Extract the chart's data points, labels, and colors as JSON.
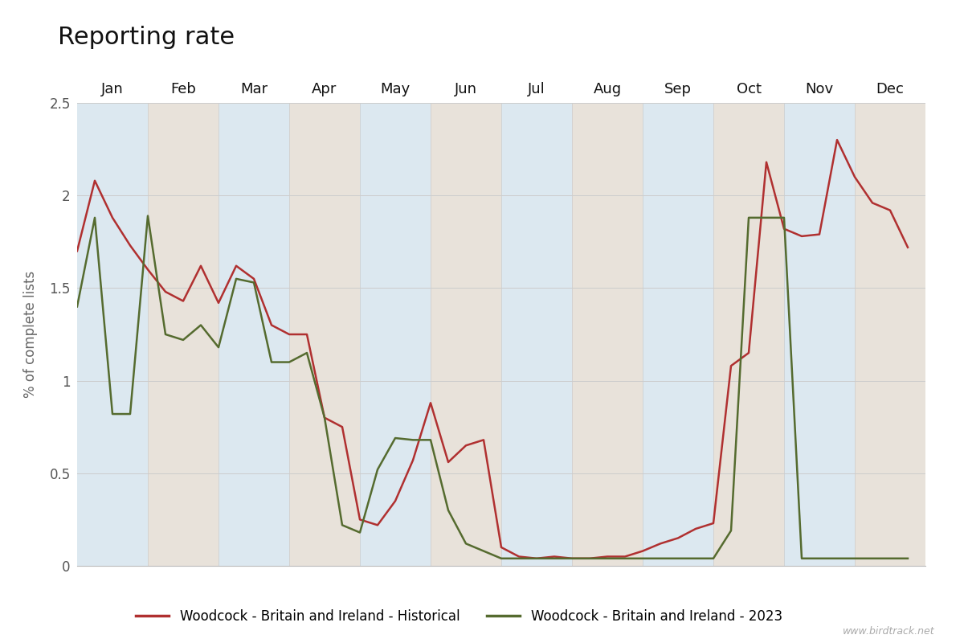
{
  "title": "Reporting rate",
  "ylabel": "% of complete lists",
  "ylim": [
    0,
    2.5
  ],
  "yticks": [
    0,
    0.5,
    1.0,
    1.5,
    2.0,
    2.5
  ],
  "background_color": "#ffffff",
  "plot_bg_jan": "#dce8f0",
  "plot_bg_feb": "#e8e2da",
  "months": [
    "Jan",
    "Feb",
    "Mar",
    "Apr",
    "May",
    "Jun",
    "Jul",
    "Aug",
    "Sep",
    "Oct",
    "Nov",
    "Dec"
  ],
  "historical_color": "#b03030",
  "current_color": "#556b2f",
  "legend_historical": "Woodcock - Britain and Ireland - Historical",
  "legend_current": "Woodcock - Britain and Ireland - 2023",
  "watermark": "www.birdtrack.net",
  "historical": [
    1.7,
    2.08,
    1.88,
    1.73,
    1.6,
    1.48,
    1.43,
    1.62,
    1.42,
    1.62,
    1.55,
    1.3,
    1.25,
    1.25,
    0.8,
    0.75,
    0.25,
    0.22,
    0.35,
    0.57,
    0.88,
    0.56,
    0.65,
    0.68,
    0.1,
    0.05,
    0.04,
    0.05,
    0.04,
    0.04,
    0.05,
    0.05,
    0.08,
    0.12,
    0.15,
    0.2,
    0.23,
    1.08,
    1.15,
    2.18,
    1.82,
    1.78,
    1.79,
    2.3,
    2.1,
    1.96,
    1.92,
    1.72
  ],
  "current_2023": [
    1.4,
    1.88,
    0.82,
    0.82,
    1.89,
    1.25,
    1.22,
    1.3,
    1.18,
    1.55,
    1.53,
    1.1,
    1.1,
    1.15,
    0.8,
    0.22,
    0.18,
    0.52,
    0.69,
    0.68,
    0.68,
    0.3,
    0.12,
    0.08,
    0.04,
    0.04,
    0.04,
    0.04,
    0.04,
    0.04,
    0.04,
    0.04,
    0.04,
    0.04,
    0.04,
    0.04,
    0.04,
    0.19,
    1.88,
    1.88,
    1.88,
    0.04,
    0.04,
    0.04,
    0.04,
    0.04,
    0.04,
    0.04
  ],
  "pts_per_month": 4
}
